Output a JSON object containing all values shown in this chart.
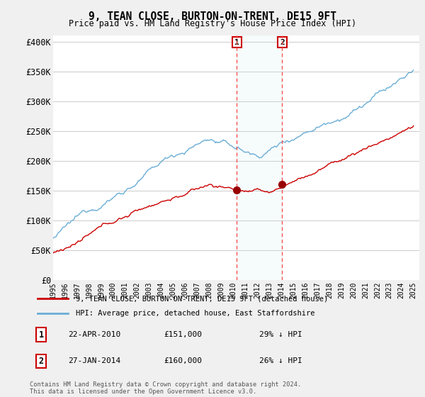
{
  "title": "9, TEAN CLOSE, BURTON-ON-TRENT, DE15 9FT",
  "subtitle": "Price paid vs. HM Land Registry's House Price Index (HPI)",
  "ylim": [
    0,
    410000
  ],
  "yticks": [
    0,
    50000,
    100000,
    150000,
    200000,
    250000,
    300000,
    350000,
    400000
  ],
  "ytick_labels": [
    "£0",
    "£50K",
    "£100K",
    "£150K",
    "£200K",
    "£250K",
    "£300K",
    "£350K",
    "£400K"
  ],
  "background_color": "#f0f0f0",
  "plot_bg_color": "#ffffff",
  "grid_color": "#cccccc",
  "hpi_color": "#6baed6",
  "price_color": "#cc0000",
  "marker_color": "#990000",
  "dashed_line_color": "#ff4444",
  "transaction1_x": 2010.3,
  "transaction1_y": 151000,
  "transaction2_x": 2014.07,
  "transaction2_y": 160000,
  "legend_price_label": "9, TEAN CLOSE, BURTON-ON-TRENT, DE15 9FT (detached house)",
  "legend_hpi_label": "HPI: Average price, detached house, East Staffordshire",
  "table_row1": [
    "1",
    "22-APR-2010",
    "£151,000",
    "29% ↓ HPI"
  ],
  "table_row2": [
    "2",
    "27-JAN-2014",
    "£160,000",
    "26% ↓ HPI"
  ],
  "footer": "Contains HM Land Registry data © Crown copyright and database right 2024.\nThis data is licensed under the Open Government Licence v3.0.",
  "xmin": 1995,
  "xmax": 2025.5
}
